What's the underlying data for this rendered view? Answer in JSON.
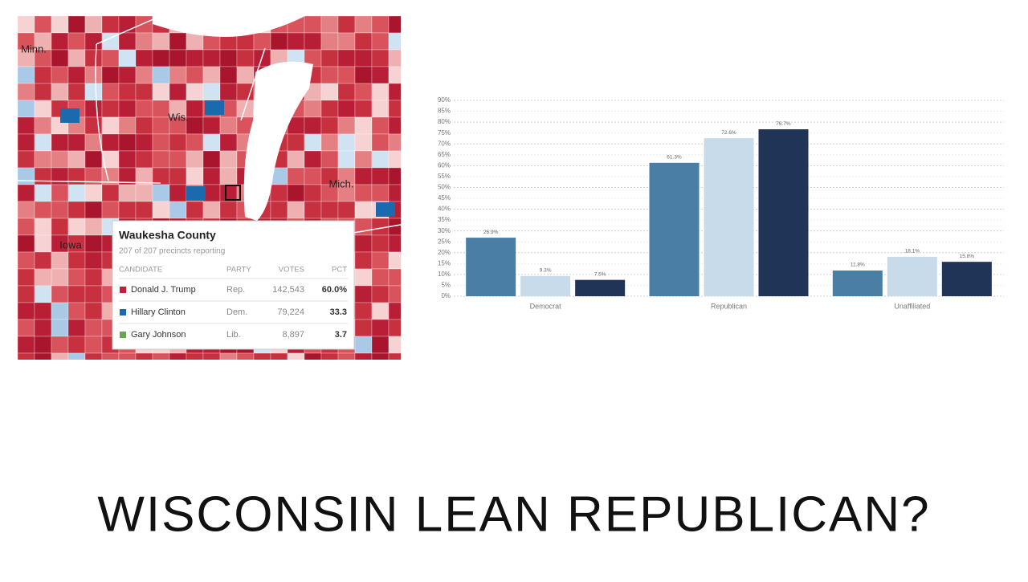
{
  "map": {
    "state_labels": [
      "Minn.",
      "Wis.",
      "Mich.",
      "Iowa"
    ]
  },
  "tooltip": {
    "title": "Waukesha County",
    "subtitle": "207 of 207 precincts reporting",
    "headers": [
      "CANDIDATE",
      "PARTY",
      "VOTES",
      "PCT"
    ],
    "rows": [
      {
        "candidate": "Donald J. Trump",
        "party": "Rep.",
        "votes": "142,543",
        "pct": "60.0%",
        "color": "#c1203b"
      },
      {
        "candidate": "Hillary Clinton",
        "party": "Dem.",
        "votes": "79,224",
        "pct": "33.3",
        "color": "#1a6aad"
      },
      {
        "candidate": "Gary Johnson",
        "party": "Lib.",
        "votes": "8,897",
        "pct": "3.7",
        "color": "#6aa84f"
      }
    ]
  },
  "chart_data": {
    "type": "bar",
    "categories": [
      "Democrat",
      "Republican",
      "Unaffiliated"
    ],
    "series": [
      {
        "color": "#4b7ea5",
        "values": [
          26.9,
          61.3,
          11.8
        ],
        "value_labels": [
          "26.9%",
          "61.3%",
          "11.8%"
        ]
      },
      {
        "color": "#c8dbea",
        "values": [
          9.3,
          72.6,
          18.1
        ],
        "value_labels": [
          "9.3%",
          "72.6%",
          "18.1%"
        ]
      },
      {
        "color": "#1f3457",
        "values": [
          7.5,
          76.7,
          15.8
        ],
        "value_labels": [
          "7.5%",
          "76.7%",
          "15.8%"
        ]
      }
    ],
    "ylim": [
      0,
      90
    ],
    "yticks": [
      {
        "value": 0,
        "label": "0%"
      },
      {
        "value": 5,
        "label": "5%"
      },
      {
        "value": 10,
        "label": "10%"
      },
      {
        "value": 15,
        "label": "15%"
      },
      {
        "value": 20,
        "label": "20%"
      },
      {
        "value": 25,
        "label": "25%"
      },
      {
        "value": 30,
        "label": "30%"
      },
      {
        "value": 35,
        "label": "35%"
      },
      {
        "value": 40,
        "label": "40%"
      },
      {
        "value": 45,
        "label": "45%"
      },
      {
        "value": 50,
        "label": "50%"
      },
      {
        "value": 55,
        "label": "55%"
      },
      {
        "value": 60,
        "label": "60%"
      },
      {
        "value": 65,
        "label": "65%"
      },
      {
        "value": 70,
        "label": "70%"
      },
      {
        "value": 75,
        "label": "75%"
      },
      {
        "value": 80,
        "label": "80%"
      },
      {
        "value": 85,
        "label": "85%"
      },
      {
        "value": 90,
        "label": "90%"
      }
    ],
    "grid": true
  },
  "heading": "WISCONSIN LEAN REPUBLICAN?"
}
